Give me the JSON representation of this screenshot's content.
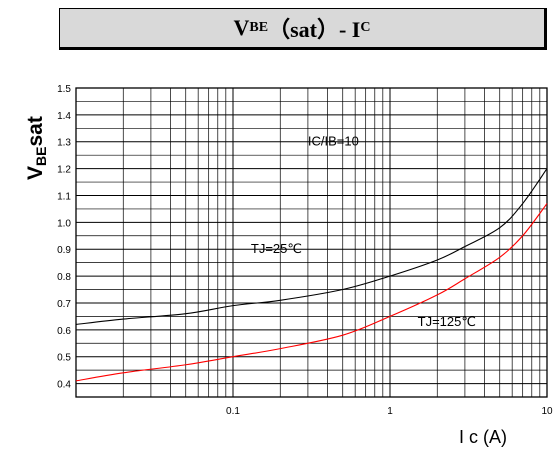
{
  "title": {
    "v_main": "V",
    "v_sub": "BE",
    "mid": "（sat）- I",
    "i_sub": "C"
  },
  "chart_data": {
    "type": "line",
    "title": "VBE（sat）- IC",
    "xlabel": "I c (A)",
    "ylabel": "VBEsat",
    "ylabel_main": "V",
    "ylabel_sub": "BE",
    "ylabel_tail": "sat",
    "xscale": "log",
    "xlim": [
      0.01,
      10
    ],
    "ylim": [
      0.35,
      1.5
    ],
    "grid": true,
    "x_ticks": [
      {
        "value": 0.1,
        "label": "0.1"
      },
      {
        "value": 1,
        "label": "1"
      },
      {
        "value": 10,
        "label": "10"
      }
    ],
    "y_ticks": [
      {
        "value": 0.4,
        "label": "0.4"
      },
      {
        "value": 0.5,
        "label": "0.5"
      },
      {
        "value": 0.6,
        "label": "0.6"
      },
      {
        "value": 0.7,
        "label": "0.7"
      },
      {
        "value": 0.8,
        "label": "0.8"
      },
      {
        "value": 0.9,
        "label": "0.9"
      },
      {
        "value": 1.0,
        "label": "1.0"
      },
      {
        "value": 1.1,
        "label": "1.1"
      },
      {
        "value": 1.2,
        "label": "1.2"
      },
      {
        "value": 1.3,
        "label": "1.3"
      },
      {
        "value": 1.4,
        "label": "1.4"
      },
      {
        "value": 1.5,
        "label": "1.5"
      }
    ],
    "series": [
      {
        "name": "TJ=25℃",
        "color": "#000000",
        "points": [
          [
            0.01,
            0.62
          ],
          [
            0.02,
            0.64
          ],
          [
            0.05,
            0.66
          ],
          [
            0.1,
            0.69
          ],
          [
            0.2,
            0.71
          ],
          [
            0.5,
            0.75
          ],
          [
            1,
            0.8
          ],
          [
            2,
            0.86
          ],
          [
            3,
            0.91
          ],
          [
            5,
            0.98
          ],
          [
            7,
            1.07
          ],
          [
            10,
            1.2
          ]
        ]
      },
      {
        "name": "TJ=125℃",
        "color": "#ff0000",
        "points": [
          [
            0.01,
            0.41
          ],
          [
            0.02,
            0.44
          ],
          [
            0.05,
            0.47
          ],
          [
            0.1,
            0.5
          ],
          [
            0.2,
            0.53
          ],
          [
            0.5,
            0.58
          ],
          [
            1,
            0.65
          ],
          [
            2,
            0.73
          ],
          [
            3,
            0.79
          ],
          [
            5,
            0.87
          ],
          [
            7,
            0.95
          ],
          [
            10,
            1.07
          ]
        ]
      }
    ],
    "annotations": [
      {
        "text": "IC/IB=10",
        "x": 0.3,
        "y": 1.3
      },
      {
        "text": "TJ=25℃",
        "x": 0.13,
        "y": 0.9
      },
      {
        "text": "TJ=125℃",
        "x": 1.5,
        "y": 0.63
      }
    ]
  }
}
